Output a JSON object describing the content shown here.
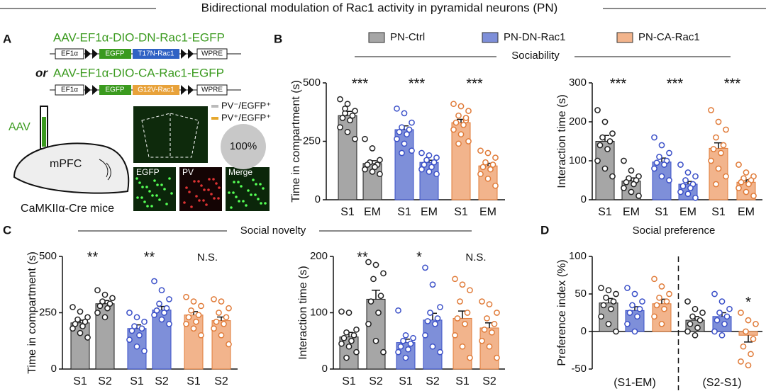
{
  "title": "Bidirectional modulation of Rac1 activity in pyramidal neurons (PN)",
  "panels": [
    "A",
    "B",
    "C",
    "D"
  ],
  "sections": {
    "B": "Sociability",
    "C": "Social novelty",
    "D": "Social preference"
  },
  "legend": [
    {
      "name": "PN-Ctrl",
      "color": "#a6a6a6"
    },
    {
      "name": "PN-DN-Rac1",
      "color": "#7e8fd9"
    },
    {
      "name": "PN-CA-Rac1",
      "color": "#f2b48c"
    }
  ],
  "panel_a": {
    "construct_dn": "AAV-EF1α-DIO-DN-Rac1-EGFP",
    "or": "or",
    "construct_ca": "AAV-EF1α-DIO-CA-Rac1-EGFP",
    "promoter": "EF1α",
    "reporter": "EGFP",
    "dn_gene": "T17N-Rac1",
    "ca_gene": "G12V-Rac1",
    "wpre": "WPRE",
    "virus": "AAV",
    "region": "mPFC",
    "mouse": "CaMKIIα-Cre mice",
    "pie_legend": [
      "PV⁻/EGFP⁺",
      "PV⁺/EGFP⁺"
    ],
    "pie": {
      "value": 100,
      "label": "100%"
    },
    "images": [
      "EGFP",
      "PV",
      "Merge"
    ]
  },
  "chart_data": [
    {
      "type": "bar",
      "ylabel": "Time in compartment (s)",
      "categories": [
        "S1",
        "EM",
        "S1",
        "EM",
        "S1",
        "EM"
      ],
      "values": [
        360,
        155,
        300,
        160,
        330,
        145
      ],
      "errors": [
        18,
        12,
        16,
        9,
        14,
        11
      ],
      "colors": [
        "#a6a6a6",
        "#a6a6a6",
        "#7e8fd9",
        "#7e8fd9",
        "#f2b48c",
        "#f2b48c"
      ],
      "point_colors": [
        "#222222",
        "#222222",
        "#3b50c8",
        "#3b50c8",
        "#e07b39",
        "#e07b39"
      ],
      "points": [
        [
          430,
          410,
          380,
          370,
          360,
          350,
          340,
          310,
          290,
          260,
          390
        ],
        [
          260,
          220,
          170,
          160,
          150,
          150,
          140,
          130,
          120,
          110
        ],
        [
          390,
          370,
          330,
          310,
          300,
          290,
          280,
          260,
          240,
          210,
          200
        ],
        [
          200,
          190,
          180,
          170,
          160,
          150,
          140,
          130,
          120,
          110
        ],
        [
          410,
          400,
          380,
          360,
          340,
          330,
          320,
          300,
          280,
          250,
          240,
          350
        ],
        [
          210,
          200,
          180,
          160,
          150,
          140,
          130,
          110,
          90,
          60
        ]
      ],
      "stars": [
        "***",
        "***",
        "***"
      ],
      "ylim": [
        0,
        500
      ],
      "yticks": [
        0,
        250,
        500
      ]
    },
    {
      "type": "bar",
      "ylabel": "Interaction time (s)",
      "categories": [
        "S1",
        "EM",
        "S1",
        "EM",
        "S1",
        "EM"
      ],
      "values": [
        150,
        48,
        97,
        40,
        132,
        45
      ],
      "errors": [
        15,
        8,
        10,
        7,
        14,
        6
      ],
      "colors": [
        "#a6a6a6",
        "#a6a6a6",
        "#7e8fd9",
        "#7e8fd9",
        "#f2b48c",
        "#f2b48c"
      ],
      "point_colors": [
        "#222222",
        "#222222",
        "#3b50c8",
        "#3b50c8",
        "#e07b39",
        "#e07b39"
      ],
      "points": [
        [
          230,
          200,
          170,
          160,
          150,
          140,
          130,
          100,
          80,
          60
        ],
        [
          100,
          75,
          60,
          55,
          50,
          45,
          40,
          30,
          20,
          10
        ],
        [
          160,
          140,
          120,
          110,
          100,
          95,
          90,
          80,
          60,
          50
        ],
        [
          90,
          70,
          60,
          50,
          40,
          35,
          30,
          20,
          15,
          5
        ],
        [
          230,
          200,
          180,
          160,
          140,
          130,
          120,
          100,
          80,
          60,
          40
        ],
        [
          90,
          70,
          60,
          55,
          50,
          45,
          40,
          30,
          20,
          10
        ]
      ],
      "stars": [
        "***",
        "***",
        "***"
      ],
      "ylim": [
        0,
        300
      ],
      "yticks": [
        0,
        100,
        200,
        300
      ]
    },
    {
      "type": "bar",
      "ylabel": "Time in compartment (s)",
      "categories": [
        "S1",
        "S2",
        "S1",
        "S2",
        "S1",
        "S2"
      ],
      "values": [
        205,
        290,
        180,
        262,
        240,
        215
      ],
      "errors": [
        12,
        14,
        16,
        16,
        15,
        16
      ],
      "colors": [
        "#a6a6a6",
        "#a6a6a6",
        "#7e8fd9",
        "#7e8fd9",
        "#f2b48c",
        "#f2b48c"
      ],
      "point_colors": [
        "#222222",
        "#222222",
        "#3b50c8",
        "#3b50c8",
        "#e07b39",
        "#e07b39"
      ],
      "points": [
        [
          275,
          255,
          230,
          220,
          210,
          200,
          190,
          180,
          160,
          140
        ],
        [
          350,
          330,
          315,
          300,
          290,
          280,
          270,
          250,
          230
        ],
        [
          250,
          230,
          210,
          190,
          180,
          170,
          150,
          130,
          100,
          80
        ],
        [
          390,
          350,
          310,
          290,
          270,
          260,
          250,
          240,
          220,
          200
        ],
        [
          320,
          300,
          280,
          260,
          240,
          230,
          210,
          200,
          180,
          150
        ],
        [
          310,
          300,
          270,
          250,
          230,
          210,
          200,
          180,
          150,
          110
        ]
      ],
      "stars": [
        "**",
        "**",
        "N.S."
      ],
      "ylim": [
        0,
        500
      ],
      "yticks": [
        0,
        250,
        500
      ]
    },
    {
      "type": "bar",
      "ylabel": "Interaction time (s)",
      "categories": [
        "S1",
        "S2",
        "S1",
        "S2",
        "S1",
        "S2"
      ],
      "values": [
        57,
        124,
        47,
        87,
        90,
        73
      ],
      "errors": [
        8,
        16,
        6,
        12,
        13,
        9
      ],
      "colors": [
        "#a6a6a6",
        "#a6a6a6",
        "#7e8fd9",
        "#7e8fd9",
        "#f2b48c",
        "#f2b48c"
      ],
      "point_colors": [
        "#222222",
        "#222222",
        "#3b50c8",
        "#3b50c8",
        "#e07b39",
        "#e07b39"
      ],
      "points": [
        [
          102,
          100,
          70,
          65,
          60,
          55,
          50,
          45,
          40,
          30,
          20
        ],
        [
          190,
          185,
          170,
          160,
          130,
          120,
          100,
          80,
          50,
          30
        ],
        [
          104,
          60,
          55,
          50,
          45,
          40,
          35,
          30,
          20
        ],
        [
          180,
          150,
          110,
          100,
          90,
          85,
          80,
          60,
          40,
          30
        ],
        [
          160,
          150,
          140,
          120,
          100,
          90,
          80,
          60,
          40,
          20
        ],
        [
          120,
          115,
          100,
          90,
          80,
          70,
          65,
          50,
          40,
          20
        ]
      ],
      "stars": [
        "**",
        "*",
        "N.S."
      ],
      "ylim": [
        0,
        200
      ],
      "yticks": [
        0,
        100,
        200
      ]
    },
    {
      "type": "bar",
      "ylabel": "Preference index (%)",
      "groups": [
        "(S1-EM)",
        "(S2-S1)"
      ],
      "values": [
        38,
        28,
        37,
        15,
        20,
        -5
      ],
      "errors": [
        6,
        5,
        6,
        5,
        5,
        9
      ],
      "colors": [
        "#a6a6a6",
        "#7e8fd9",
        "#f2b48c",
        "#a6a6a6",
        "#7e8fd9",
        "#f2b48c"
      ],
      "point_colors": [
        "#222222",
        "#3b50c8",
        "#e07b39",
        "#222222",
        "#3b50c8",
        "#e07b39"
      ],
      "points": [
        [
          58,
          55,
          50,
          45,
          40,
          35,
          30,
          20,
          10,
          0
        ],
        [
          58,
          50,
          40,
          35,
          30,
          25,
          20,
          10,
          0
        ],
        [
          70,
          60,
          50,
          45,
          40,
          35,
          30,
          20,
          10
        ],
        [
          40,
          30,
          25,
          20,
          15,
          10,
          5,
          0,
          -5
        ],
        [
          50,
          40,
          30,
          25,
          20,
          15,
          10,
          0,
          -5
        ],
        [
          25,
          15,
          10,
          0,
          -10,
          -20,
          -30,
          -40,
          -45
        ]
      ],
      "stars": [
        null,
        null,
        null,
        null,
        null,
        "*"
      ],
      "ylim": [
        -50,
        100
      ],
      "yticks": [
        -50,
        0,
        50,
        100
      ]
    }
  ]
}
